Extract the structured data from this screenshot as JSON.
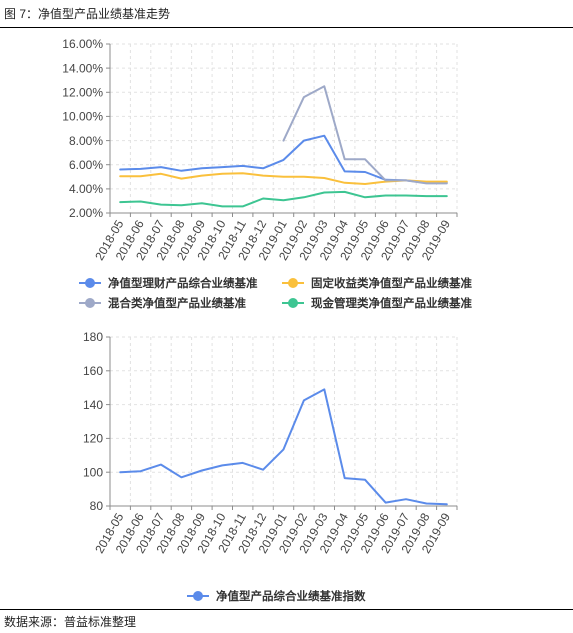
{
  "figure": {
    "title": "图 7：净值型产品业绩基准走势",
    "source": "数据来源：普益标准整理"
  },
  "chart_data": [
    {
      "type": "line",
      "categories": [
        "2018-05",
        "2018-06",
        "2018-07",
        "2018-08",
        "2018-09",
        "2018-10",
        "2018-11",
        "2018-12",
        "2019-01",
        "2019-02",
        "2019-03",
        "2019-04",
        "2019-05",
        "2019-06",
        "2019-07",
        "2019-08",
        "2019-09"
      ],
      "ylim": [
        2,
        16
      ],
      "y_ticks": [
        2,
        4,
        6,
        8,
        10,
        12,
        14,
        16
      ],
      "y_tick_labels": [
        "2.00%",
        "4.00%",
        "6.00%",
        "8.00%",
        "10.00%",
        "12.00%",
        "14.00%",
        "16.00%"
      ],
      "grid": true,
      "legend": "bottom",
      "series": [
        {
          "name": "净值型理财产品综合业绩基准",
          "color": "#5B8BEA",
          "values": [
            5.6,
            5.65,
            5.8,
            5.5,
            5.7,
            5.8,
            5.9,
            5.7,
            6.4,
            8.0,
            8.4,
            5.45,
            5.4,
            4.75,
            4.7,
            4.5,
            4.5
          ]
        },
        {
          "name": "固定收益类净值型产品业绩基准",
          "color": "#FAC03C",
          "values": [
            5.05,
            5.05,
            5.25,
            4.85,
            5.1,
            5.25,
            5.3,
            5.1,
            5.0,
            5.0,
            4.9,
            4.5,
            4.4,
            4.6,
            4.7,
            4.6,
            4.6
          ]
        },
        {
          "name": "混合类净值型产品业绩基准",
          "color": "#9EA9C8",
          "values": [
            null,
            null,
            null,
            null,
            null,
            null,
            null,
            null,
            8.0,
            11.6,
            12.5,
            6.45,
            6.45,
            4.7,
            4.7,
            4.45,
            4.45
          ]
        },
        {
          "name": "现金管理类净值型产品业绩基准",
          "color": "#3DC592",
          "values": [
            2.9,
            2.95,
            2.7,
            2.65,
            2.8,
            2.55,
            2.55,
            3.2,
            3.05,
            3.3,
            3.7,
            3.75,
            3.3,
            3.45,
            3.45,
            3.4,
            3.4
          ]
        }
      ]
    },
    {
      "type": "line",
      "categories": [
        "2018-05",
        "2018-06",
        "2018-07",
        "2018-08",
        "2018-09",
        "2018-10",
        "2018-11",
        "2018-12",
        "2019-01",
        "2019-02",
        "2019-03",
        "2019-04",
        "2019-05",
        "2019-06",
        "2019-07",
        "2019-08",
        "2019-09"
      ],
      "ylim": [
        80,
        180
      ],
      "y_ticks": [
        80,
        100,
        120,
        140,
        160,
        180
      ],
      "y_tick_labels": [
        "80",
        "100",
        "120",
        "140",
        "160",
        "180"
      ],
      "grid": true,
      "legend": "bottom",
      "series": [
        {
          "name": "净值型产品综合业绩基准指数",
          "color": "#5B8BEA",
          "values": [
            100,
            100.6,
            104.5,
            97,
            101,
            104,
            105.5,
            101.5,
            113.5,
            142.5,
            149,
            96.5,
            95.5,
            82,
            84,
            81.5,
            81
          ]
        }
      ]
    }
  ]
}
